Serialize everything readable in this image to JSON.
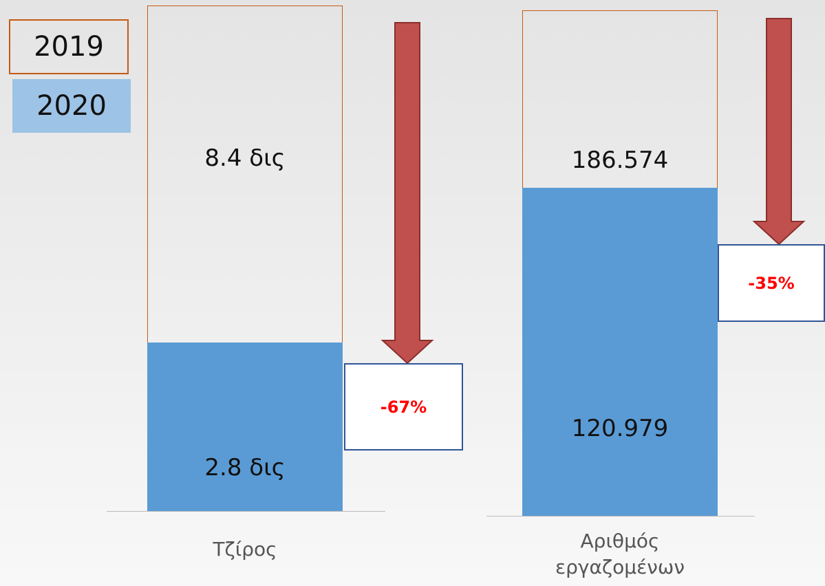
{
  "chart_data": {
    "type": "bar",
    "categories": [
      "Τζίρος",
      "Αριθμός εργαζομένων"
    ],
    "series": [
      {
        "name": "2019",
        "color": "#c55a11",
        "values": [
          8.4,
          186574
        ],
        "value_labels": [
          "8.4 δις",
          "186.574"
        ]
      },
      {
        "name": "2020",
        "color": "#5b9bd5",
        "values": [
          2.8,
          120979
        ],
        "value_labels": [
          "2.8 δις",
          "120.979"
        ]
      }
    ],
    "annotations": [
      {
        "value": -67,
        "label": "-67%"
      },
      {
        "value": -35,
        "label": "-35%"
      }
    ],
    "annotation_color": "#ff0000",
    "arrow_color": "#c0504d"
  }
}
